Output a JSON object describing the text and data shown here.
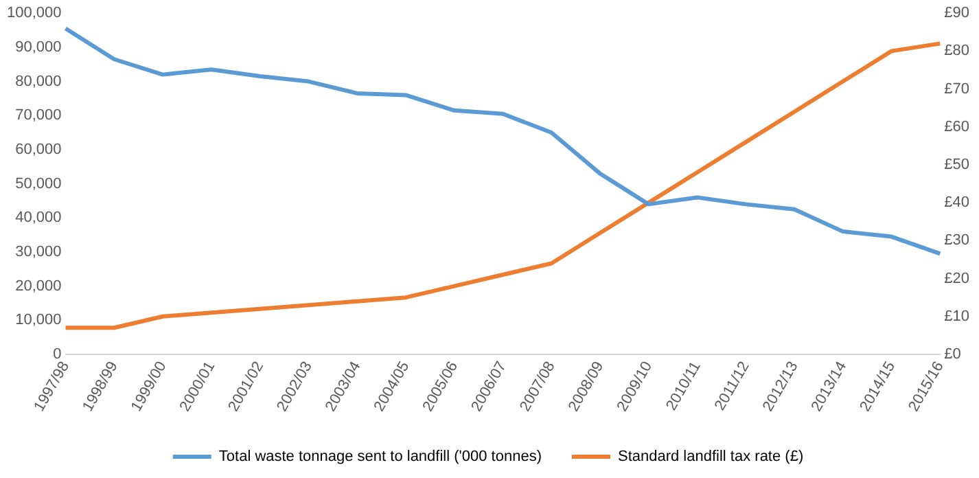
{
  "chart_data": {
    "type": "line",
    "categories": [
      "1997/98",
      "1998/99",
      "1999/00",
      "2000/01",
      "2001/02",
      "2002/03",
      "2003/04",
      "2004/05",
      "2005/06",
      "2006/07",
      "2007/08",
      "2008/09",
      "2009/10",
      "2010/11",
      "2011/12",
      "2012/13",
      "2013/14",
      "2014/15",
      "2015/16"
    ],
    "series": [
      {
        "name": "Total waste tonnage sent to landfill ('000 tonnes)",
        "color": "#5b9bd5",
        "values": [
          95500,
          86500,
          82000,
          83500,
          81500,
          80000,
          76500,
          76000,
          71500,
          70500,
          65000,
          53000,
          44000,
          46000,
          44000,
          42500,
          36000,
          34500,
          29500
        ]
      },
      {
        "name": "Standard landfill tax rate (£)",
        "color": "#ed7d31",
        "axis": "y2",
        "values": [
          7,
          7,
          10,
          11,
          12,
          13,
          14,
          15,
          18,
          21,
          24,
          32,
          40,
          48,
          56,
          64,
          72,
          80,
          82
        ]
      }
    ],
    "ylim": [
      0,
      100000
    ],
    "yticks": [
      0,
      {
        "value": 10000,
        "label": "10,000"
      },
      {
        "value": 20000,
        "label": "20,000"
      },
      {
        "value": 30000,
        "label": "30,000"
      },
      {
        "value": 40000,
        "label": "40,000"
      },
      {
        "value": 50000,
        "label": "50,000"
      },
      {
        "value": 60000,
        "label": "60,000"
      },
      {
        "value": 70000,
        "label": "70,000"
      },
      {
        "value": 80000,
        "label": "80,000"
      },
      {
        "value": 90000,
        "label": "90,000"
      },
      {
        "value": 100000,
        "label": "100,000"
      }
    ],
    "y2lim": [
      0,
      90
    ],
    "y2ticks": [
      {
        "value": 0,
        "label": "£0"
      },
      {
        "value": 10,
        "label": "£10"
      },
      {
        "value": 20,
        "label": "£20"
      },
      {
        "value": 30,
        "label": "£30"
      },
      {
        "value": 40,
        "label": "£40"
      },
      {
        "value": 50,
        "label": "£50"
      },
      {
        "value": 60,
        "label": "£60"
      },
      {
        "value": 70,
        "label": "£70"
      },
      {
        "value": 80,
        "label": "£80"
      },
      {
        "value": 90,
        "label": "£90"
      }
    ],
    "legend": "bottom",
    "marker": "none",
    "line_style": "solid",
    "grid": false
  }
}
